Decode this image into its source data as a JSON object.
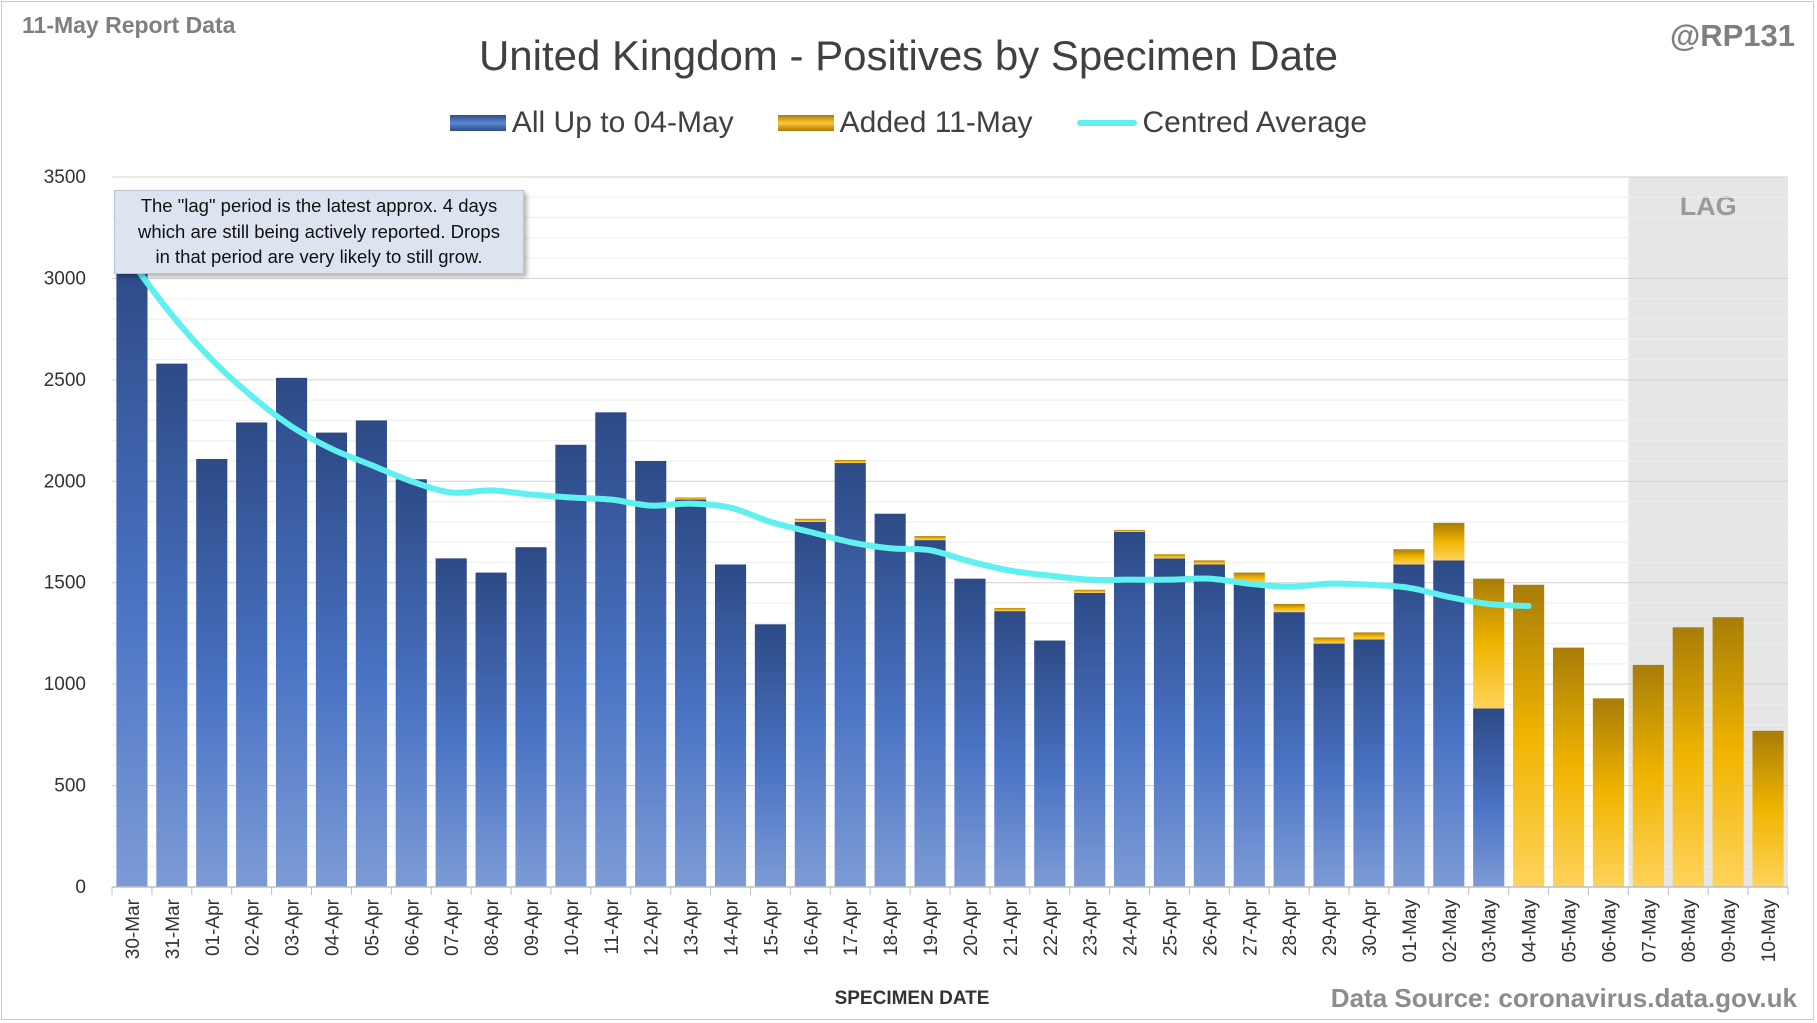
{
  "header": {
    "report_label": "11-May Report Data",
    "handle": "@RP131",
    "source": "Data Source: coronavirus.data.gov.uk"
  },
  "colors": {
    "blue_series": "#3f63ad",
    "gold_series": "#e0a800",
    "average_line": "#5ff0f0",
    "lag_shade": "#e6e6e6"
  },
  "note": {
    "lines": [
      "The \"lag\" period is the latest approx. 4 days",
      "which are still being actively reported.  Drops",
      "in that period are very likely to still grow."
    ]
  },
  "chart_data": {
    "type": "bar",
    "stacked": true,
    "title": "United Kingdom - Positives by Specimen Date",
    "xlabel": "SPECIMEN DATE",
    "ylabel": "",
    "ylim": [
      0,
      3500
    ],
    "yticks": [
      0,
      500,
      1000,
      1500,
      2000,
      2500,
      3000,
      3500
    ],
    "grid": true,
    "legend_position": "top",
    "lag_label": "LAG",
    "lag_categories": [
      "07-May",
      "08-May",
      "09-May",
      "10-May"
    ],
    "categories": [
      "30-Mar",
      "31-Mar",
      "01-Apr",
      "02-Apr",
      "03-Apr",
      "04-Apr",
      "05-Apr",
      "06-Apr",
      "07-Apr",
      "08-Apr",
      "09-Apr",
      "10-Apr",
      "11-Apr",
      "12-Apr",
      "13-Apr",
      "14-Apr",
      "15-Apr",
      "16-Apr",
      "17-Apr",
      "18-Apr",
      "19-Apr",
      "20-Apr",
      "21-Apr",
      "22-Apr",
      "23-Apr",
      "24-Apr",
      "25-Apr",
      "26-Apr",
      "27-Apr",
      "28-Apr",
      "29-Apr",
      "30-Apr",
      "01-May",
      "02-May",
      "03-May",
      "04-May",
      "05-May",
      "06-May",
      "07-May",
      "08-May",
      "09-May",
      "10-May"
    ],
    "series": [
      {
        "name": "All Up to 04-May",
        "kind": "bar",
        "values": [
          3110,
          2580,
          2110,
          2290,
          2510,
          2240,
          2300,
          2010,
          1620,
          1550,
          1675,
          2180,
          2340,
          2100,
          1910,
          1590,
          1295,
          1800,
          2090,
          1840,
          1710,
          1520,
          1360,
          1215,
          1450,
          1750,
          1620,
          1590,
          1500,
          1355,
          1200,
          1220,
          1590,
          1610,
          880,
          0,
          0,
          0,
          0,
          0,
          0,
          0
        ]
      },
      {
        "name": "Added 11-May",
        "kind": "bar",
        "values": [
          0,
          0,
          0,
          0,
          0,
          0,
          0,
          0,
          0,
          0,
          0,
          0,
          0,
          0,
          10,
          0,
          0,
          15,
          15,
          0,
          20,
          0,
          15,
          0,
          15,
          10,
          20,
          20,
          50,
          40,
          30,
          35,
          75,
          185,
          640,
          1490,
          1180,
          930,
          1095,
          1280,
          1330,
          770
        ]
      },
      {
        "name": "Centred Average",
        "kind": "line",
        "values": [
          3080,
          2820,
          2600,
          2420,
          2270,
          2160,
          2080,
          2000,
          1945,
          1955,
          1935,
          1920,
          1910,
          1880,
          1890,
          1870,
          1800,
          1750,
          1700,
          1670,
          1660,
          1605,
          1560,
          1535,
          1515,
          1515,
          1515,
          1520,
          1495,
          1480,
          1495,
          1490,
          1475,
          1430,
          1395,
          1385,
          null,
          null,
          null,
          null,
          null,
          null
        ]
      }
    ]
  }
}
